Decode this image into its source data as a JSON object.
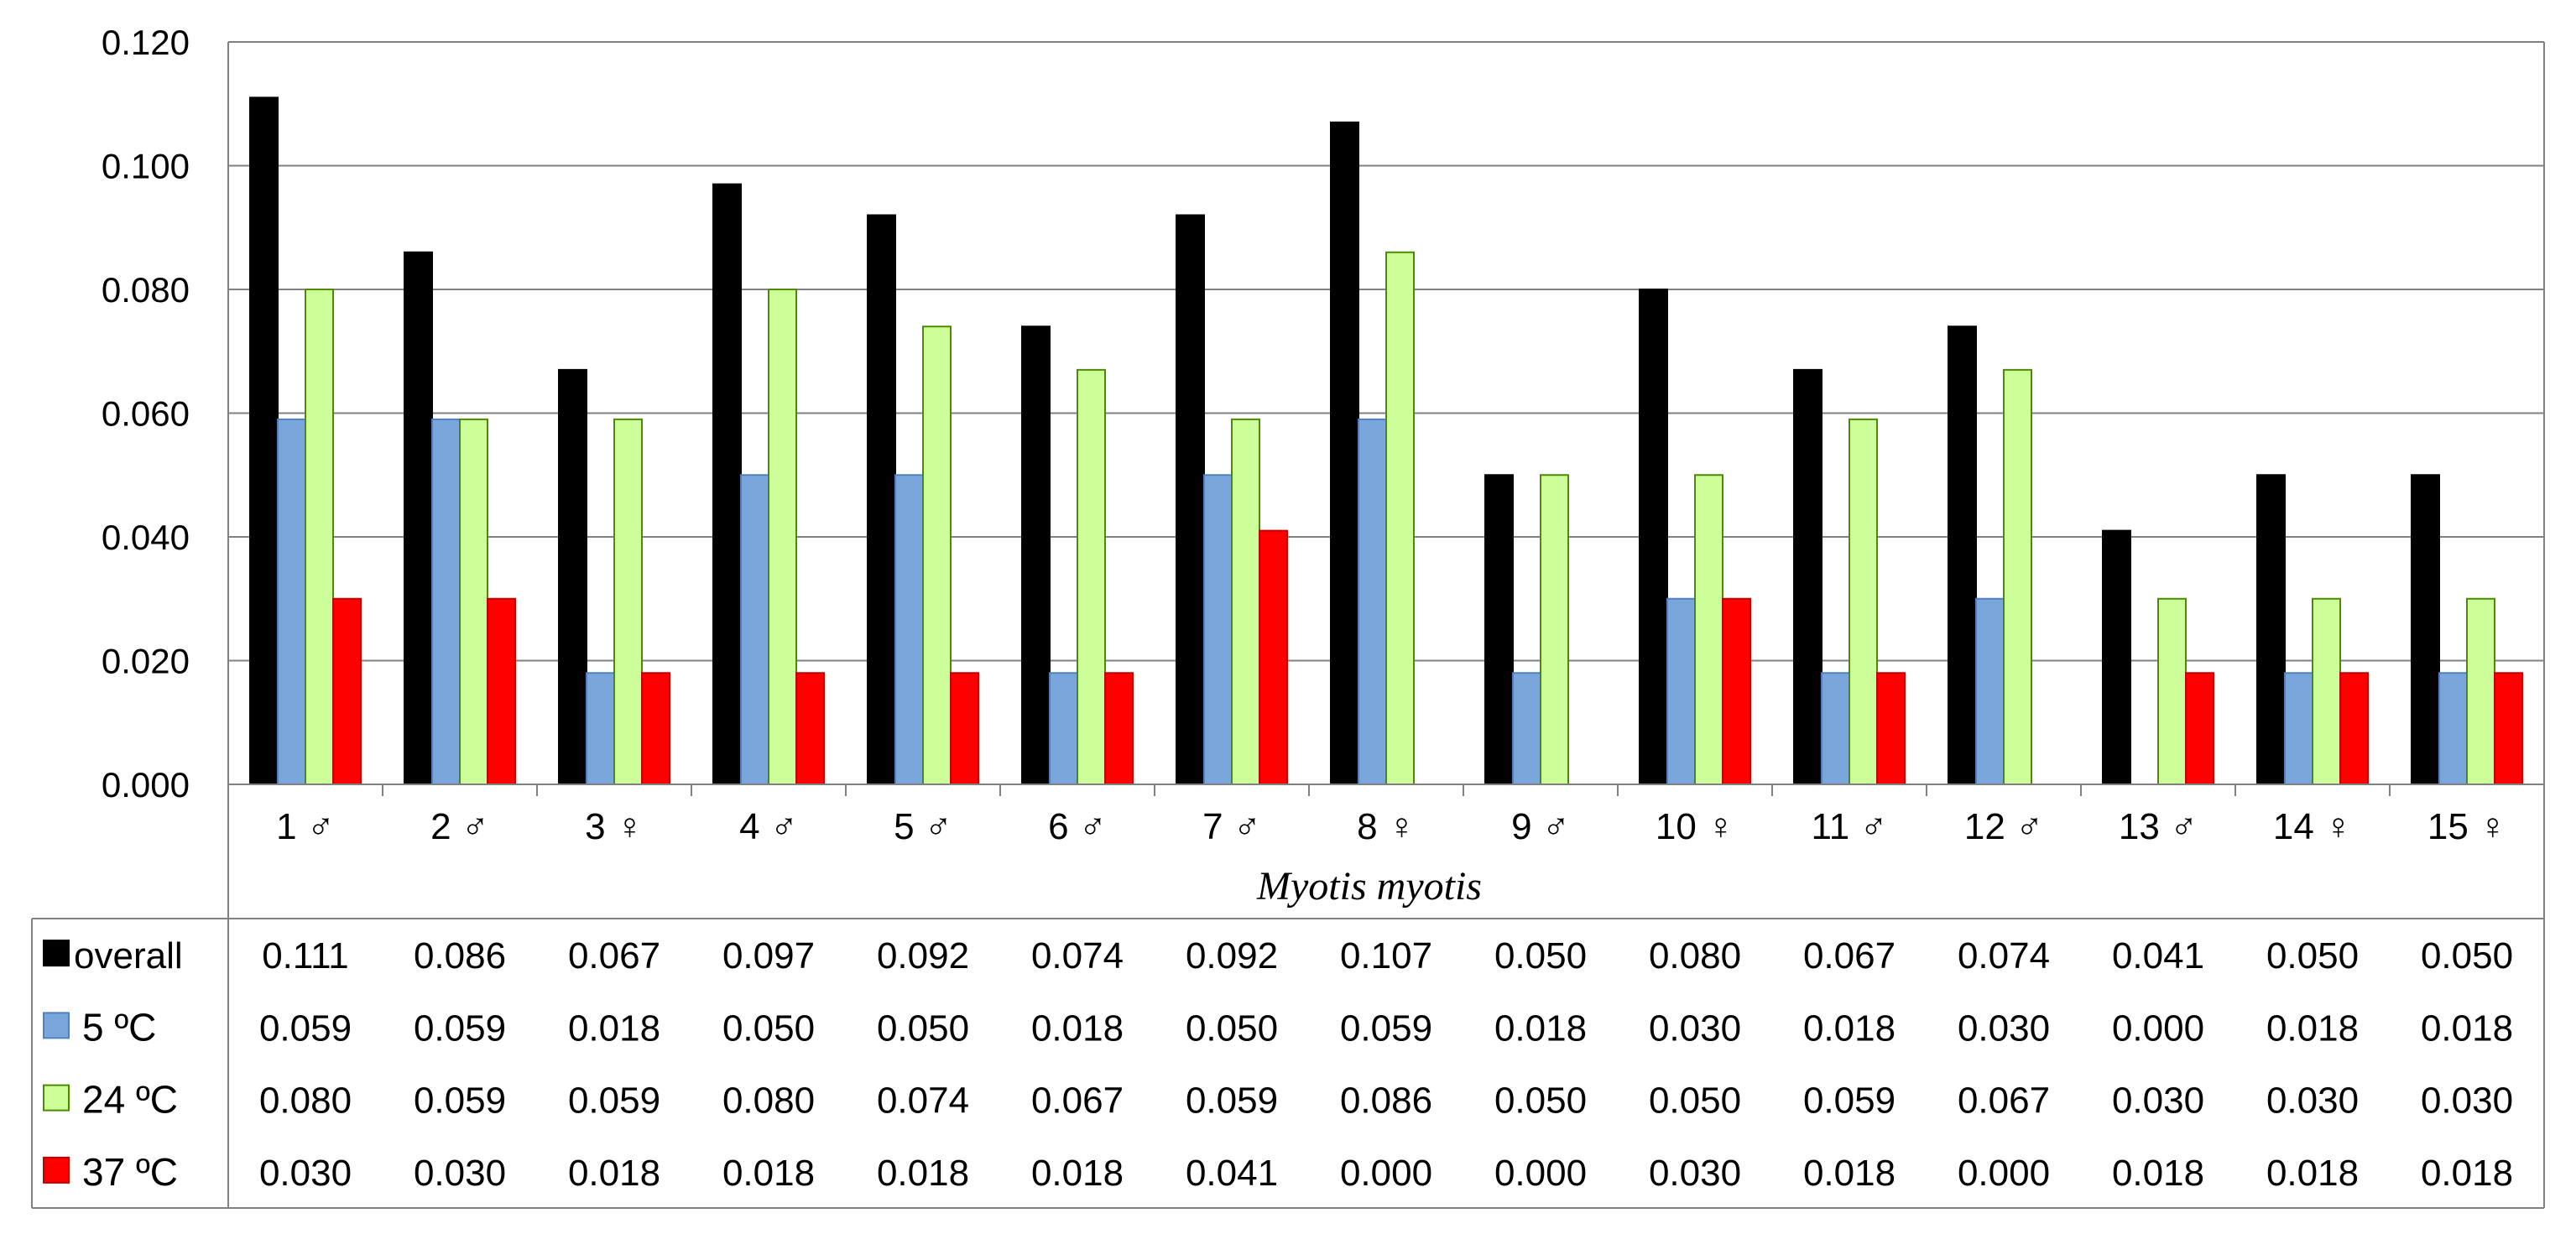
{
  "chart_data": {
    "type": "bar",
    "xlabel": "Myotis myotis",
    "ylabel": "",
    "title": "",
    "ylim": [
      0,
      0.12
    ],
    "y_ticks": [
      "0.000",
      "0.020",
      "0.040",
      "0.060",
      "0.080",
      "0.100",
      "0.120"
    ],
    "grid": true,
    "legend": "data-table",
    "categories": [
      "1 ♂",
      "2 ♂",
      "3 ♀",
      "4 ♂",
      "5 ♂",
      "6 ♂",
      "7 ♂",
      "8 ♀",
      "9 ♂",
      "10 ♀",
      "11 ♂",
      "12 ♂",
      "13 ♂",
      "14 ♀",
      "15 ♀"
    ],
    "series": [
      {
        "name": "overall",
        "color": "#000000",
        "values": [
          0.111,
          0.086,
          0.067,
          0.097,
          0.092,
          0.074,
          0.092,
          0.107,
          0.05,
          0.08,
          0.067,
          0.074,
          0.041,
          0.05,
          0.05
        ],
        "labels": [
          "0.111",
          "0.086",
          "0.067",
          "0.097",
          "0.092",
          "0.074",
          "0.092",
          "0.107",
          "0.050",
          "0.080",
          "0.067",
          "0.074",
          "0.041",
          "0.050",
          "0.050"
        ]
      },
      {
        "name": "5 ºC",
        "color": "#7AA6DC",
        "values": [
          0.059,
          0.059,
          0.018,
          0.05,
          0.05,
          0.018,
          0.05,
          0.059,
          0.018,
          0.03,
          0.018,
          0.03,
          0.0,
          0.018,
          0.018
        ],
        "labels": [
          "0.059",
          "0.059",
          "0.018",
          "0.050",
          "0.050",
          "0.018",
          "0.050",
          "0.059",
          "0.018",
          "0.030",
          "0.018",
          "0.030",
          "0.000",
          "0.018",
          "0.018"
        ]
      },
      {
        "name": "24 ºC",
        "color": "#CCFF99",
        "values": [
          0.08,
          0.059,
          0.059,
          0.08,
          0.074,
          0.067,
          0.059,
          0.086,
          0.05,
          0.05,
          0.059,
          0.067,
          0.03,
          0.03,
          0.03
        ],
        "labels": [
          "0.080",
          "0.059",
          "0.059",
          "0.080",
          "0.074",
          "0.067",
          "0.059",
          "0.086",
          "0.050",
          "0.050",
          "0.059",
          "0.067",
          "0.030",
          "0.030",
          "0.030"
        ]
      },
      {
        "name": "37 ºC",
        "color": "#FF0000",
        "values": [
          0.03,
          0.03,
          0.018,
          0.018,
          0.018,
          0.018,
          0.041,
          0.0,
          0.0,
          0.03,
          0.018,
          0.0,
          0.018,
          0.018,
          0.018
        ],
        "labels": [
          "0.030",
          "0.030",
          "0.018",
          "0.018",
          "0.018",
          "0.018",
          "0.041",
          "0.000",
          "0.000",
          "0.030",
          "0.018",
          "0.000",
          "0.018",
          "0.018",
          "0.018"
        ]
      }
    ]
  },
  "colors": {
    "gridline": "#808080",
    "axis": "#808080",
    "bar_border_blue": "#4F81BD",
    "bar_border_green": "#4E8A00",
    "bar_border_red": "#C00000"
  }
}
